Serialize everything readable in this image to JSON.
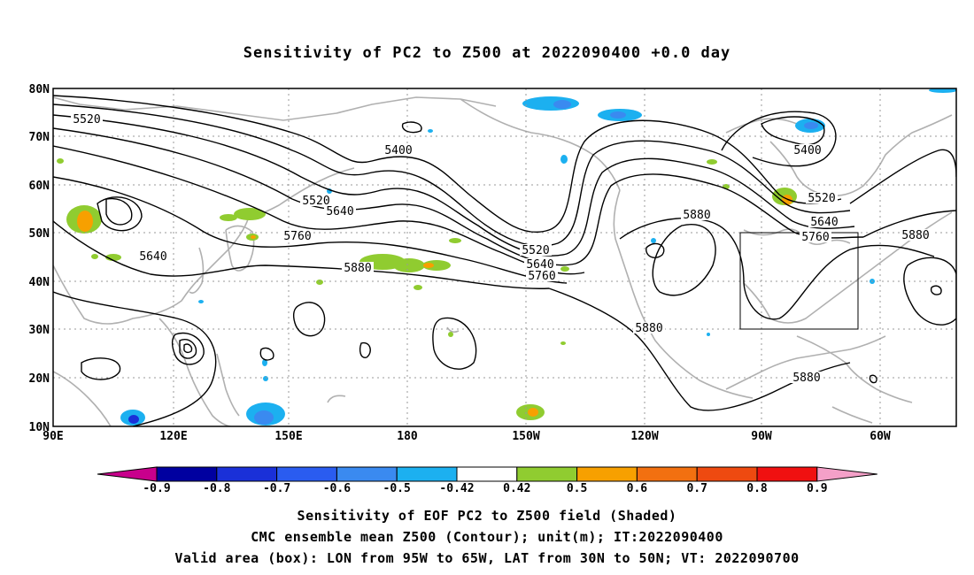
{
  "title": "Sensitivity of PC2 to Z500 at 2022090400 +0.0 day",
  "lat_ticks": [
    "80N",
    "70N",
    "60N",
    "50N",
    "40N",
    "30N",
    "20N",
    "10N"
  ],
  "lon_ticks": [
    "90E",
    "120E",
    "150E",
    "180",
    "150W",
    "120W",
    "90W",
    "60W"
  ],
  "contour_labels": [
    {
      "text": "5520"
    },
    {
      "text": "5400"
    },
    {
      "text": "5520"
    },
    {
      "text": "5640"
    },
    {
      "text": "5760"
    },
    {
      "text": "5640"
    },
    {
      "text": "5880"
    },
    {
      "text": "5520"
    },
    {
      "text": "5640"
    },
    {
      "text": "5760"
    },
    {
      "text": "5880"
    },
    {
      "text": "5400"
    },
    {
      "text": "5520"
    },
    {
      "text": "5640"
    },
    {
      "text": "5760"
    },
    {
      "text": "5880"
    },
    {
      "text": "5880"
    },
    {
      "text": "5880"
    }
  ],
  "colorbar": {
    "labels": [
      "-0.9",
      "-0.8",
      "-0.7",
      "-0.6",
      "-0.5",
      "-0.42",
      "0.42",
      "0.5",
      "0.6",
      "0.7",
      "0.8",
      "0.9"
    ],
    "colors": [
      "#0000a0",
      "#1a30d8",
      "#2a5cf0",
      "#3a8af0",
      "#1cb0f0",
      "#ffffff",
      "#90cc30",
      "#f7a000",
      "#f27010",
      "#ee4a10",
      "#f01010"
    ],
    "low_end_color": "#c8008c",
    "high_end_color": "#f4a0c8"
  },
  "box": {
    "lon_min": "95W",
    "lon_max": "65W",
    "lat_min": "30N",
    "lat_max": "50N"
  },
  "captions": {
    "line1": "Sensitivity of EOF PC2 to Z500 field (Shaded)",
    "line2": "CMC ensemble mean Z500 (Contour); unit(m); IT:2022090400",
    "line3": "Valid area (box): LON from 95W to 65W, LAT from 30N to 50N; VT: 2022090700"
  }
}
